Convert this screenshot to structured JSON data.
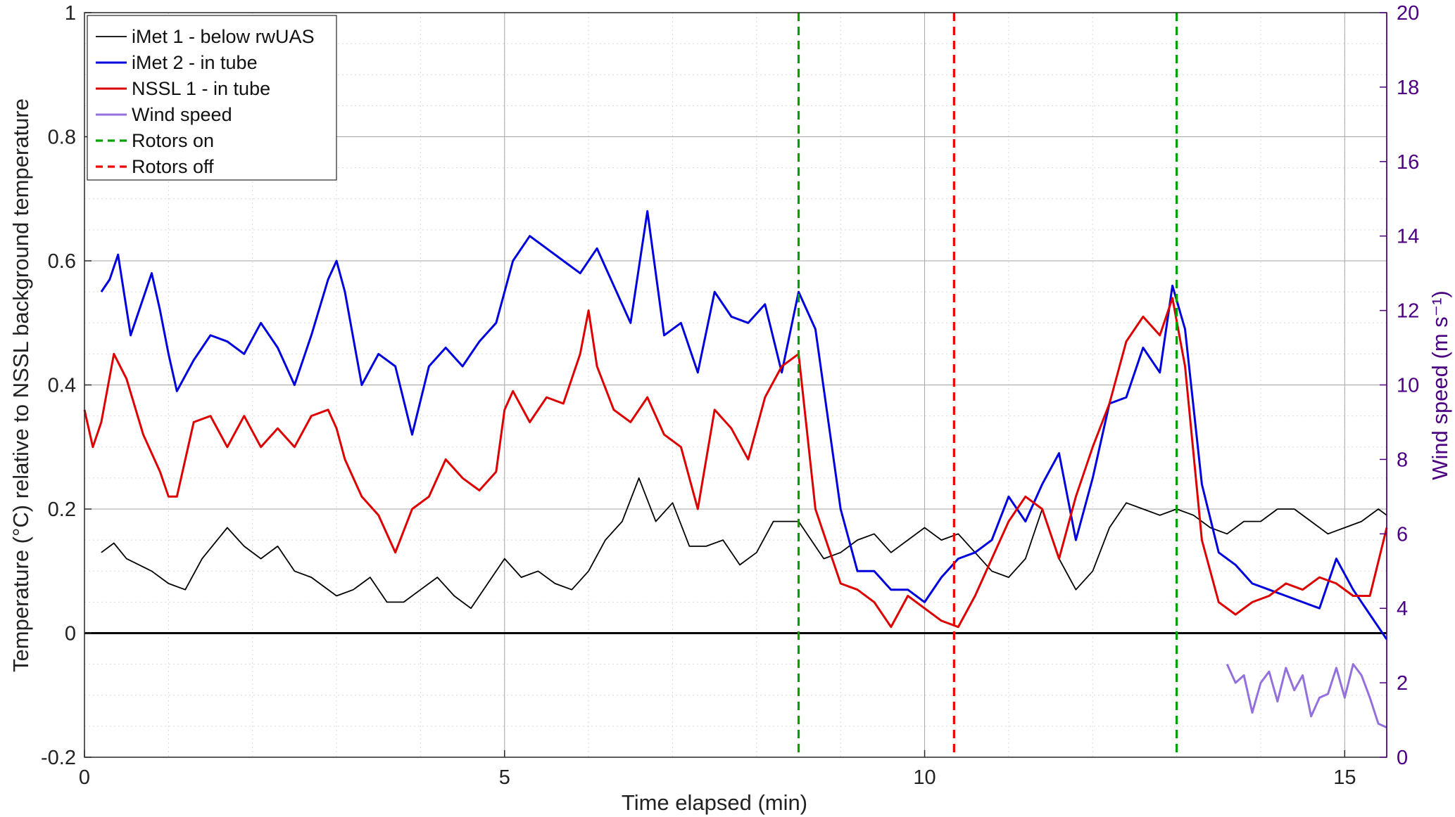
{
  "chart_data": {
    "type": "line",
    "xlabel": "Time elapsed (min)",
    "ylabel_left": "Temperature (°C) relative to NSSL background temperature",
    "ylabel_right": "Wind speed (m s⁻¹)",
    "xlim": [
      0,
      15.5
    ],
    "ylim_left": [
      -0.2,
      1.0
    ],
    "ylim_right": [
      0,
      20
    ],
    "x_ticks": [
      "0",
      "5",
      "10",
      "15"
    ],
    "y_ticks_left": [
      "-0.2",
      "0",
      "0.2",
      "0.4",
      "0.6",
      "0.8",
      "1"
    ],
    "y_ticks_right": [
      "0",
      "2",
      "4",
      "6",
      "8",
      "10",
      "12",
      "14",
      "16",
      "18",
      "20"
    ],
    "grid": true,
    "legend_position": "top-left",
    "colors": {
      "imet1": "#000000",
      "imet2": "#0000DD",
      "nssl1": "#DD0000",
      "wind": "#9370DB",
      "rotors_on": "#00A000",
      "rotors_off": "#EE0000",
      "right_axis": "#4B0082"
    },
    "series": [
      {
        "name": "iMet 1 - below rwUAS",
        "axis": "left",
        "style": "solid",
        "x": [
          0.2,
          0.35,
          0.5,
          0.8,
          1.0,
          1.2,
          1.4,
          1.7,
          1.9,
          2.1,
          2.3,
          2.5,
          2.7,
          3.0,
          3.2,
          3.4,
          3.6,
          3.8,
          4.0,
          4.2,
          4.4,
          4.6,
          4.8,
          5.0,
          5.2,
          5.4,
          5.6,
          5.8,
          6.0,
          6.2,
          6.4,
          6.6,
          6.8,
          7.0,
          7.2,
          7.4,
          7.6,
          7.8,
          8.0,
          8.2,
          8.5,
          8.8,
          9.0,
          9.2,
          9.4,
          9.6,
          9.8,
          10.0,
          10.2,
          10.4,
          10.6,
          10.8,
          11.0,
          11.2,
          11.4,
          11.6,
          11.8,
          12.0,
          12.2,
          12.4,
          12.6,
          12.8,
          13.0,
          13.2,
          13.4,
          13.6,
          13.8,
          14.0,
          14.2,
          14.4,
          14.6,
          14.8,
          15.0,
          15.2,
          15.4,
          15.5
        ],
        "y": [
          0.13,
          0.145,
          0.12,
          0.1,
          0.08,
          0.07,
          0.12,
          0.17,
          0.14,
          0.12,
          0.14,
          0.1,
          0.09,
          0.06,
          0.07,
          0.09,
          0.05,
          0.05,
          0.07,
          0.09,
          0.06,
          0.04,
          0.08,
          0.12,
          0.09,
          0.1,
          0.08,
          0.07,
          0.1,
          0.15,
          0.18,
          0.25,
          0.18,
          0.21,
          0.14,
          0.14,
          0.15,
          0.11,
          0.13,
          0.18,
          0.18,
          0.12,
          0.13,
          0.15,
          0.16,
          0.13,
          0.15,
          0.17,
          0.15,
          0.16,
          0.13,
          0.1,
          0.09,
          0.12,
          0.2,
          0.12,
          0.07,
          0.1,
          0.17,
          0.21,
          0.2,
          0.19,
          0.2,
          0.19,
          0.17,
          0.16,
          0.18,
          0.18,
          0.2,
          0.2,
          0.18,
          0.16,
          0.17,
          0.18,
          0.2,
          0.19
        ]
      },
      {
        "name": "iMet 2 - in tube",
        "axis": "left",
        "style": "solid",
        "x": [
          0.2,
          0.3,
          0.4,
          0.55,
          0.8,
          0.9,
          1.0,
          1.1,
          1.3,
          1.5,
          1.7,
          1.9,
          2.1,
          2.3,
          2.5,
          2.7,
          2.9,
          3.0,
          3.1,
          3.3,
          3.5,
          3.7,
          3.9,
          4.1,
          4.3,
          4.5,
          4.7,
          4.9,
          5.0,
          5.1,
          5.3,
          5.5,
          5.7,
          5.9,
          6.1,
          6.3,
          6.5,
          6.7,
          6.9,
          7.1,
          7.3,
          7.5,
          7.7,
          7.9,
          8.1,
          8.3,
          8.5,
          8.7,
          9.0,
          9.2,
          9.4,
          9.6,
          9.8,
          10.0,
          10.2,
          10.4,
          10.6,
          10.8,
          11.0,
          11.2,
          11.4,
          11.6,
          11.8,
          12.0,
          12.2,
          12.4,
          12.6,
          12.8,
          12.95,
          13.1,
          13.3,
          13.5,
          13.7,
          13.9,
          14.1,
          14.3,
          14.5,
          14.7,
          14.9,
          15.1,
          15.3,
          15.5
        ],
        "y": [
          0.55,
          0.57,
          0.61,
          0.48,
          0.58,
          0.52,
          0.45,
          0.39,
          0.44,
          0.48,
          0.47,
          0.45,
          0.5,
          0.46,
          0.4,
          0.48,
          0.57,
          0.6,
          0.55,
          0.4,
          0.45,
          0.43,
          0.32,
          0.43,
          0.46,
          0.43,
          0.47,
          0.5,
          0.55,
          0.6,
          0.64,
          0.62,
          0.6,
          0.58,
          0.62,
          0.56,
          0.5,
          0.68,
          0.48,
          0.5,
          0.42,
          0.55,
          0.51,
          0.5,
          0.53,
          0.42,
          0.55,
          0.49,
          0.2,
          0.1,
          0.1,
          0.07,
          0.07,
          0.05,
          0.09,
          0.12,
          0.13,
          0.15,
          0.22,
          0.18,
          0.24,
          0.29,
          0.15,
          0.25,
          0.37,
          0.38,
          0.46,
          0.42,
          0.56,
          0.49,
          0.24,
          0.13,
          0.11,
          0.08,
          0.07,
          0.06,
          0.05,
          0.04,
          0.12,
          0.07,
          0.03,
          -0.01
        ]
      },
      {
        "name": "NSSL 1 - in tube",
        "axis": "left",
        "style": "solid",
        "x": [
          0.0,
          0.1,
          0.2,
          0.35,
          0.5,
          0.7,
          0.9,
          1.0,
          1.1,
          1.3,
          1.5,
          1.7,
          1.9,
          2.1,
          2.3,
          2.5,
          2.7,
          2.9,
          3.0,
          3.1,
          3.3,
          3.5,
          3.7,
          3.9,
          4.1,
          4.3,
          4.5,
          4.7,
          4.9,
          5.0,
          5.1,
          5.3,
          5.5,
          5.7,
          5.9,
          6.0,
          6.1,
          6.3,
          6.5,
          6.7,
          6.9,
          7.1,
          7.3,
          7.5,
          7.7,
          7.9,
          8.1,
          8.3,
          8.5,
          8.7,
          9.0,
          9.2,
          9.4,
          9.6,
          9.8,
          10.0,
          10.2,
          10.4,
          10.6,
          10.8,
          11.0,
          11.2,
          11.4,
          11.6,
          11.8,
          12.0,
          12.2,
          12.4,
          12.6,
          12.8,
          12.95,
          13.1,
          13.3,
          13.5,
          13.7,
          13.9,
          14.1,
          14.3,
          14.5,
          14.7,
          14.9,
          15.1,
          15.3,
          15.5
        ],
        "y": [
          0.36,
          0.3,
          0.34,
          0.45,
          0.41,
          0.32,
          0.26,
          0.22,
          0.22,
          0.34,
          0.35,
          0.3,
          0.35,
          0.3,
          0.33,
          0.3,
          0.35,
          0.36,
          0.33,
          0.28,
          0.22,
          0.19,
          0.13,
          0.2,
          0.22,
          0.28,
          0.25,
          0.23,
          0.26,
          0.36,
          0.39,
          0.34,
          0.38,
          0.37,
          0.45,
          0.52,
          0.43,
          0.36,
          0.34,
          0.38,
          0.32,
          0.3,
          0.2,
          0.36,
          0.33,
          0.28,
          0.38,
          0.43,
          0.45,
          0.2,
          0.08,
          0.07,
          0.05,
          0.01,
          0.06,
          0.04,
          0.02,
          0.01,
          0.06,
          0.12,
          0.18,
          0.22,
          0.2,
          0.12,
          0.22,
          0.3,
          0.37,
          0.47,
          0.51,
          0.48,
          0.54,
          0.43,
          0.15,
          0.05,
          0.03,
          0.05,
          0.06,
          0.08,
          0.07,
          0.09,
          0.08,
          0.06,
          0.06,
          0.17
        ]
      },
      {
        "name": "Wind speed",
        "axis": "right",
        "style": "solid",
        "x": [
          13.6,
          13.7,
          13.8,
          13.9,
          14.0,
          14.1,
          14.2,
          14.3,
          14.4,
          14.5,
          14.6,
          14.7,
          14.8,
          14.9,
          15.0,
          15.1,
          15.2,
          15.3,
          15.4,
          15.5
        ],
        "y": [
          2.5,
          2.0,
          2.2,
          1.2,
          2.0,
          2.3,
          1.5,
          2.4,
          1.8,
          2.2,
          1.1,
          1.6,
          1.7,
          2.4,
          1.6,
          2.5,
          2.2,
          1.6,
          0.9,
          0.8
        ]
      },
      {
        "name": "Rotors on",
        "axis": "left",
        "style": "dashed",
        "vlines_x": [
          8.5,
          13.0
        ]
      },
      {
        "name": "Rotors off",
        "axis": "left",
        "style": "dashed",
        "vlines_x": [
          10.35
        ]
      }
    ]
  }
}
